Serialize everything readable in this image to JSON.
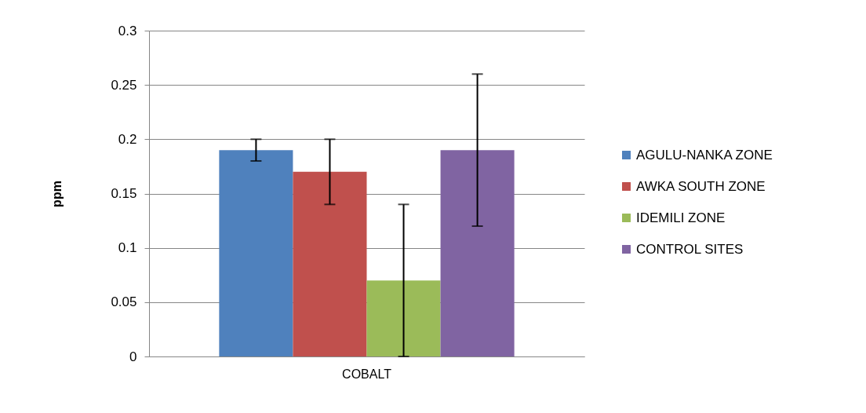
{
  "chart_data": {
    "type": "bar",
    "categories": [
      "COBALT"
    ],
    "ylabel": "ppm",
    "ylim": [
      0,
      0.3
    ],
    "yticks": [
      0,
      0.05,
      0.1,
      0.15,
      0.2,
      0.25,
      0.3
    ],
    "grid": "y",
    "legend": "right",
    "series": [
      {
        "name": "AGULU-NANKA ZONE",
        "color": "#4f81bd",
        "values": [
          0.19
        ],
        "errors": [
          0.01
        ]
      },
      {
        "name": "AWKA SOUTH ZONE",
        "color": "#c0504d",
        "values": [
          0.17
        ],
        "errors": [
          0.03
        ]
      },
      {
        "name": "IDEMILI ZONE",
        "color": "#9bbb59",
        "values": [
          0.07
        ],
        "errors": [
          0.07
        ]
      },
      {
        "name": "CONTROL SITES",
        "color": "#8064a2",
        "values": [
          0.19
        ],
        "errors": [
          0.07
        ]
      }
    ]
  }
}
